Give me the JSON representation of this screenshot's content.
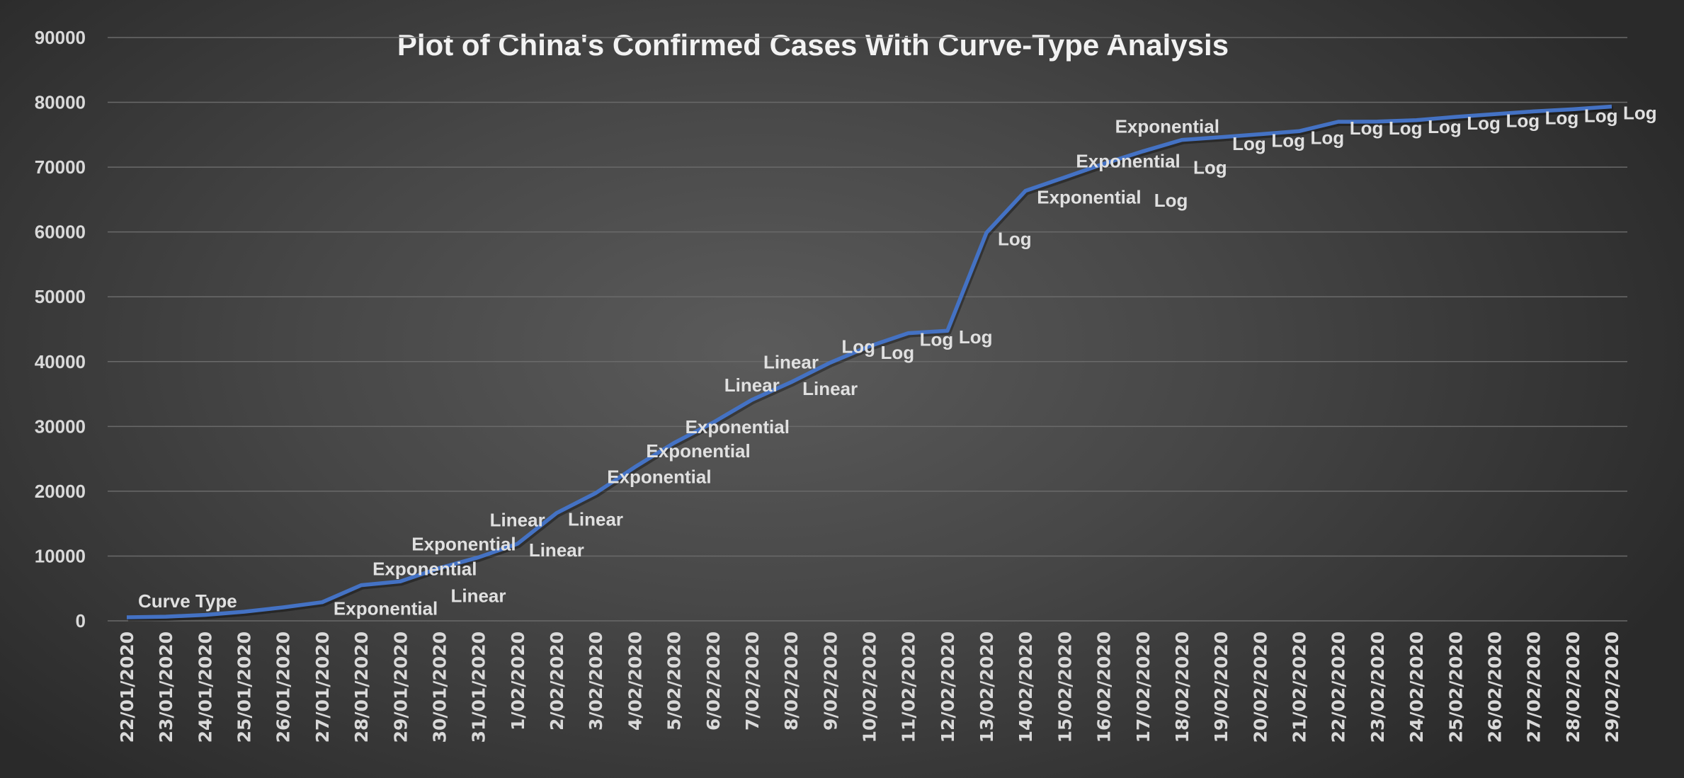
{
  "chart_data": {
    "type": "line",
    "title": "Plot of China's Confirmed Cases With Curve-Type Analysis",
    "xlabel": "",
    "ylabel": "",
    "ylim": [
      0,
      90000
    ],
    "yticks": [
      0,
      10000,
      20000,
      30000,
      40000,
      50000,
      60000,
      70000,
      80000,
      90000
    ],
    "grid": true,
    "line_color": "#4472c4",
    "categories": [
      "22/01/2020",
      "23/01/2020",
      "24/01/2020",
      "25/01/2020",
      "26/01/2020",
      "27/01/2020",
      "28/01/2020",
      "29/01/2020",
      "30/01/2020",
      "31/01/2020",
      "1/02/2020",
      "2/02/2020",
      "3/02/2020",
      "4/02/2020",
      "5/02/2020",
      "6/02/2020",
      "7/02/2020",
      "8/02/2020",
      "9/02/2020",
      "10/02/2020",
      "11/02/2020",
      "12/02/2020",
      "13/02/2020",
      "14/02/2020",
      "15/02/2020",
      "16/02/2020",
      "17/02/2020",
      "18/02/2020",
      "19/02/2020",
      "20/02/2020",
      "21/02/2020",
      "22/02/2020",
      "23/02/2020",
      "24/02/2020",
      "25/02/2020",
      "26/02/2020",
      "27/02/2020",
      "28/02/2020",
      "29/02/2020"
    ],
    "values": [
      548,
      643,
      920,
      1406,
      2075,
      2877,
      5509,
      6087,
      8141,
      9802,
      11891,
      16630,
      19716,
      23707,
      27440,
      30587,
      34110,
      36814,
      39829,
      42354,
      44386,
      44759,
      59895,
      66358,
      68413,
      70513,
      72434,
      74211,
      74619,
      75077,
      75550,
      77001,
      77022,
      77241,
      77754,
      78166,
      78600,
      78928,
      79356
    ],
    "data_labels": [
      "Curve Type",
      "",
      "",
      "",
      "",
      "Exponential",
      "Exponential",
      "Exponential",
      "Linear",
      "Linear",
      "Linear",
      "Linear",
      "Exponential",
      "Exponential",
      "Exponential",
      "Linear",
      "Linear",
      "Linear",
      "Log",
      "Log",
      "Log",
      "Log",
      "Log",
      "Exponential",
      "Exponential",
      "Exponential",
      "Log",
      "Log",
      "Log",
      "Log",
      "Log",
      "Log",
      "Log",
      "Log",
      "Log",
      "Log",
      "Log",
      "Log",
      "Log"
    ]
  }
}
